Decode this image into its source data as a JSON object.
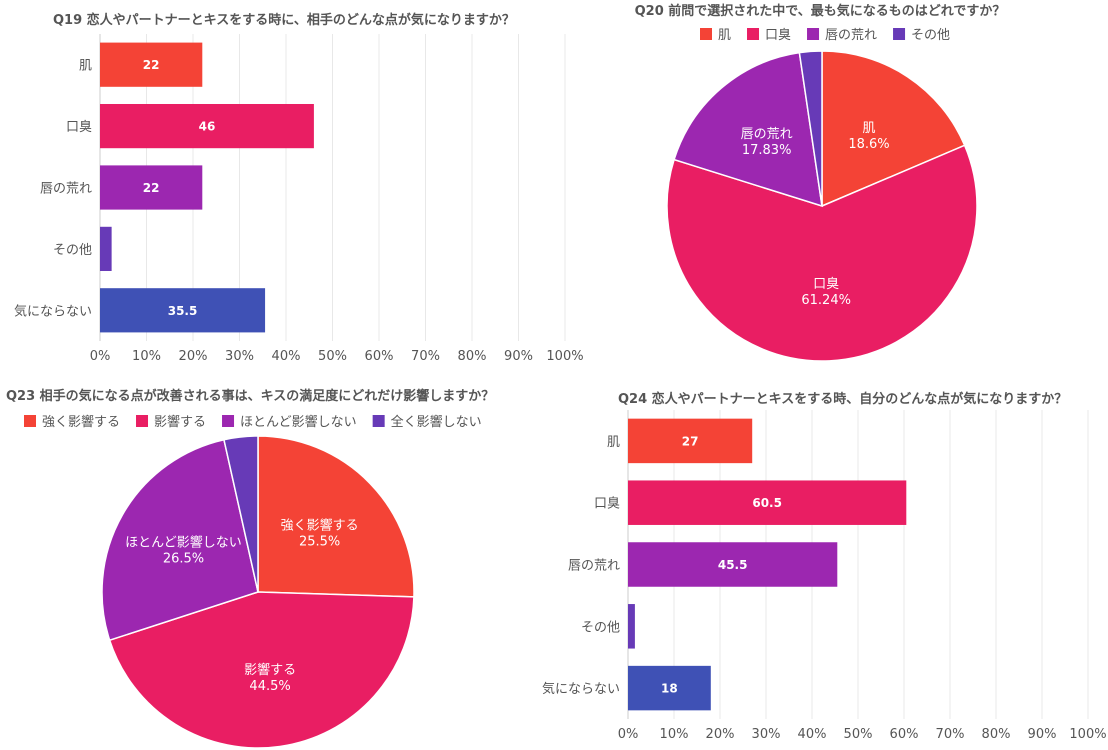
{
  "chart_data": [
    {
      "type": "bar",
      "title": "Q19 恋人やパートナーとキスをする時に、相手のどんな点が気になりますか？",
      "orientation": "horizontal",
      "categories": [
        "肌",
        "口臭",
        "唇の荒れ",
        "その他",
        "気にならない"
      ],
      "values": [
        22,
        46,
        22,
        2.5,
        35.5
      ],
      "value_labels": [
        "22",
        "46",
        "22",
        "",
        "35.5"
      ],
      "colors": [
        "#f44336",
        "#e91e63",
        "#9c27b0",
        "#673ab7",
        "#3f51b5"
      ],
      "xlim": [
        0,
        100
      ],
      "xticks": [
        "0%",
        "10%",
        "20%",
        "30%",
        "40%",
        "50%",
        "60%",
        "70%",
        "80%",
        "90%",
        "100%"
      ],
      "grid": true
    },
    {
      "type": "pie",
      "title": "Q20 前問で選択された中で、最も気になるものはどれですか？",
      "labels": [
        "肌",
        "口臭",
        "唇の荒れ",
        "その他"
      ],
      "values": [
        18.6,
        61.24,
        17.83,
        2.33
      ],
      "value_labels": [
        "18.6%",
        "61.24%",
        "17.83%",
        ""
      ],
      "colors": [
        "#f44336",
        "#e91e63",
        "#9c27b0",
        "#673ab7"
      ],
      "legend": "top"
    },
    {
      "type": "pie",
      "title": "Q23 相手の気になる点が改善される事は、キスの満足度にどれだけ影響しますか？",
      "labels": [
        "強く影響する",
        "影響する",
        "ほとんど影響しない",
        "全く影響しない"
      ],
      "values": [
        25.5,
        44.5,
        26.5,
        3.5
      ],
      "value_labels": [
        "25.5%",
        "44.5%",
        "26.5%",
        ""
      ],
      "colors": [
        "#f44336",
        "#e91e63",
        "#9c27b0",
        "#673ab7"
      ],
      "legend": "top"
    },
    {
      "type": "bar",
      "title": "Q24 恋人やパートナーとキスをする時、自分のどんな点が気になりますか？",
      "orientation": "horizontal",
      "categories": [
        "肌",
        "口臭",
        "唇の荒れ",
        "その他",
        "気にならない"
      ],
      "values": [
        27,
        60.5,
        45.5,
        1.5,
        18
      ],
      "value_labels": [
        "27",
        "60.5",
        "45.5",
        "",
        "18"
      ],
      "colors": [
        "#f44336",
        "#e91e63",
        "#9c27b0",
        "#673ab7",
        "#3f51b5"
      ],
      "xlim": [
        0,
        100
      ],
      "xticks": [
        "0%",
        "10%",
        "20%",
        "30%",
        "40%",
        "50%",
        "60%",
        "70%",
        "80%",
        "90%",
        "100%"
      ],
      "grid": true
    }
  ]
}
